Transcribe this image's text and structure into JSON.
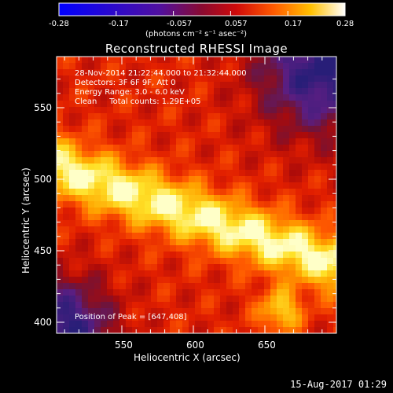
{
  "colorbar": {
    "ticks": [
      "-0.28",
      "-0.17",
      "-0.057",
      "0.057",
      "0.17",
      "0.28"
    ],
    "units": "(photons cm⁻² s⁻¹ asec⁻²)"
  },
  "title": "Reconstructed RHESSI Image",
  "info": {
    "line1": "28-Nov-2014 21:22:44.000 to 21:32:44.000",
    "line2": "Detectors: 3F 6F 9F, Att 0",
    "line3": "Energy Range: 3.0 - 6.0 keV",
    "line4": "Clean     Total counts: 1.29E+05"
  },
  "peak": "Position of Peak = [647,408]",
  "axes": {
    "xlabel": "Heliocentric X (arcsec)",
    "ylabel": "Heliocentric Y (arcsec)",
    "xticks": [
      "550",
      "600",
      "650"
    ],
    "yticks": [
      "550",
      "500",
      "450",
      "400"
    ]
  },
  "footer": "15-Aug-2017 01:29",
  "colors": {
    "background": "#000000",
    "colormap": "rhessi-hot"
  }
}
